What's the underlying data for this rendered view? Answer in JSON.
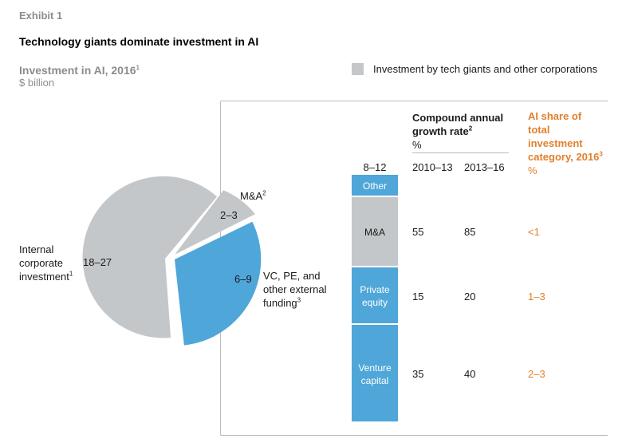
{
  "header": {
    "exhibit": "Exhibit 1",
    "title": "Technology giants dominate investment in AI",
    "subtitle": "Investment in AI, 2016",
    "subtitle_note": "1",
    "unit": "$ billion"
  },
  "legend": {
    "label": "Investment by tech giants and other corporations",
    "color": "#c4c7ca"
  },
  "colors": {
    "gray": "#c4c7ca",
    "blue": "#4fa6d9",
    "accent": "#e27f2d"
  },
  "pie": {
    "internal": {
      "value": "18–27",
      "label_line1": "Internal",
      "label_line2": "corporate",
      "label_line3": "investment",
      "note": "1"
    },
    "ma": {
      "value": "2–3",
      "label": "M&A",
      "note": "2"
    },
    "vc": {
      "value": "6–9",
      "label_line1": "VC, PE, and",
      "label_line2": "other external",
      "label_line3": "funding",
      "note": "3"
    }
  },
  "table": {
    "cagr_header_line1": "Compound annual",
    "cagr_header_line2": "growth rate",
    "cagr_note": "2",
    "cagr_unit": "%",
    "share_header_line1": "AI share of",
    "share_header_line2": "total",
    "share_header_line3": "investment",
    "share_header_line4": "category, 2016",
    "share_note": "3",
    "share_unit": "%",
    "bar_total": "8–12",
    "period1": "2010–13",
    "period2": "2013–16",
    "rows": [
      {
        "segment_line1": "Other",
        "segment_line2": "",
        "cagr1": "",
        "cagr2": "",
        "share": ""
      },
      {
        "segment_line1": "M&A",
        "segment_line2": "",
        "cagr1": "55",
        "cagr2": "85",
        "share": "<1"
      },
      {
        "segment_line1": "Private",
        "segment_line2": "equity",
        "cagr1": "15",
        "cagr2": "20",
        "share": "1–3"
      },
      {
        "segment_line1": "Venture",
        "segment_line2": "capital",
        "cagr1": "35",
        "cagr2": "40",
        "share": "2–3"
      }
    ]
  },
  "chart_data": [
    {
      "type": "pie",
      "title": "Investment in AI, 2016",
      "unit": "$ billion",
      "slices": [
        {
          "name": "Internal corporate investment",
          "value_range": "18–27",
          "value_mid": 22.5,
          "color": "#c4c7ca"
        },
        {
          "name": "M&A",
          "value_range": "2–3",
          "value_mid": 2.5,
          "color": "#c4c7ca"
        },
        {
          "name": "VC, PE, and other external funding",
          "value_range": "6–9",
          "value_mid": 7.5,
          "color": "#4fa6d9"
        }
      ]
    },
    {
      "type": "bar",
      "stacked": true,
      "total": "8–12",
      "categories": [
        "Other",
        "M&A",
        "Private equity",
        "Venture capital"
      ],
      "colors": [
        "#4fa6d9",
        "#c4c7ca",
        "#4fa6d9",
        "#4fa6d9"
      ]
    },
    {
      "type": "table",
      "columns": [
        "2010–13",
        "2013–16",
        "AI share of total investment category, 2016 (%)"
      ],
      "rows": [
        {
          "category": "M&A",
          "values": [
            "55",
            "85",
            "<1"
          ]
        },
        {
          "category": "Private equity",
          "values": [
            "15",
            "20",
            "1–3"
          ]
        },
        {
          "category": "Venture capital",
          "values": [
            "35",
            "40",
            "2–3"
          ]
        }
      ]
    }
  ]
}
